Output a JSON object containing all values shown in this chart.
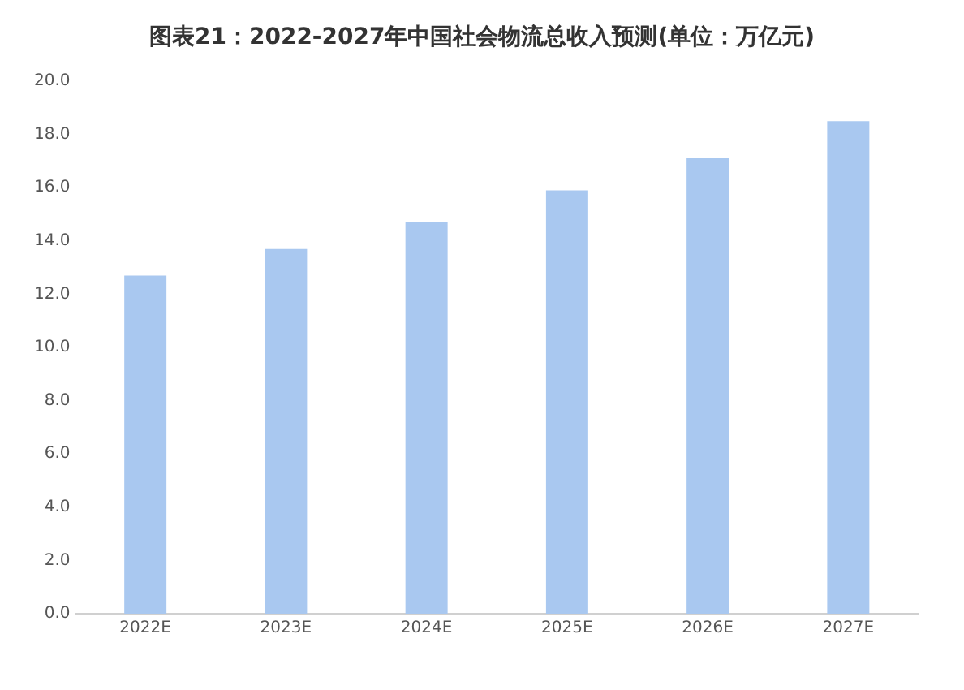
{
  "chart_data": {
    "type": "bar",
    "title": "图表21：2022-2027年中国社会物流总收入预测(单位：万亿元)",
    "categories": [
      "2022E",
      "2023E",
      "2024E",
      "2025E",
      "2026E",
      "2027E"
    ],
    "values": [
      12.7,
      13.7,
      14.7,
      15.9,
      17.1,
      18.5
    ],
    "color": "#a9c8f0",
    "ylim": [
      0,
      20
    ],
    "yticks": [
      {
        "value": 0,
        "label": "0.0"
      },
      {
        "value": 2,
        "label": "2.0"
      },
      {
        "value": 4,
        "label": "4.0"
      },
      {
        "value": 6,
        "label": "6.0"
      },
      {
        "value": 8,
        "label": "8.0"
      },
      {
        "value": 10,
        "label": "10.0"
      },
      {
        "value": 12,
        "label": "12.0"
      },
      {
        "value": 14,
        "label": "14.0"
      },
      {
        "value": 16,
        "label": "16.0"
      },
      {
        "value": 18,
        "label": "18.0"
      },
      {
        "value": 20,
        "label": "20.0"
      }
    ],
    "grid": false
  }
}
